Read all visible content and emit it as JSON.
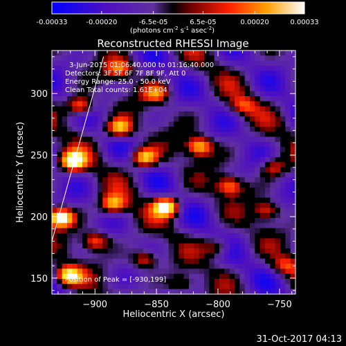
{
  "colorbar": {
    "ticks": [
      "-0.00033",
      "-0.00020",
      "-6.5e-05",
      "6.5e-05",
      "0.00020",
      "0.00033"
    ],
    "tick_values": [
      -0.00033,
      -0.0002,
      -6.5e-05,
      6.5e-05,
      0.0002,
      0.00033
    ],
    "range": [
      -0.00033,
      0.00033
    ],
    "units_main": "(photons cm",
    "units_sup1": "-2",
    "units_mid": " s",
    "units_sup2": "-1",
    "units_end": " asec",
    "units_sup3": "-2",
    "units_close": ")"
  },
  "info": {
    "time_range": "3-Jun-2015 01:06:40.000 to 01:16:40.000",
    "detectors": "Detectors: 3F 5F 6F 7F 8F 9F, Att 0",
    "energy": "Energy Range: 25.0 - 50.0 keV",
    "clean": "Clean    Total counts: 1.61E+04",
    "peak": "Position of Peak = [-930,199]"
  },
  "footer": {
    "date": "31-Oct-2017 04:13"
  },
  "chart_data": {
    "type": "heatmap",
    "title": "Reconstructed RHESSI Image",
    "xlabel": "Heliocentric X (arcsec)",
    "ylabel": "Heliocentric Y (arcsec)",
    "xlim": [
      -935,
      -737
    ],
    "ylim": [
      137,
      335
    ],
    "x_ticks": [
      -900,
      -850,
      -800,
      -750
    ],
    "y_ticks": [
      150,
      200,
      250,
      300
    ],
    "x_tick_labels": [
      "−900",
      "−850",
      "−800",
      "−750"
    ],
    "y_tick_labels": [
      "150",
      "200",
      "250",
      "300"
    ],
    "colormap": [
      "#0000ff",
      "#400090",
      "#7040c0",
      "#000000",
      "#800000",
      "#ff2000",
      "#ff9000",
      "#ffe000",
      "#ffffff"
    ],
    "peak": {
      "x": -930,
      "y": 199
    },
    "limb_line": [
      {
        "x": -935,
        "y": 180
      },
      {
        "x": -893,
        "y": 330
      }
    ],
    "bright_spots": [
      {
        "x": -928,
        "y": 199,
        "w": 1.0
      },
      {
        "x": -918,
        "y": 245,
        "w": 0.9
      },
      {
        "x": -922,
        "y": 152,
        "w": 0.85
      },
      {
        "x": -912,
        "y": 290,
        "w": 0.7
      },
      {
        "x": -880,
        "y": 272,
        "w": 0.75
      },
      {
        "x": -860,
        "y": 248,
        "w": 0.8
      },
      {
        "x": -842,
        "y": 208,
        "w": 0.95
      },
      {
        "x": -885,
        "y": 210,
        "w": 0.7
      },
      {
        "x": -815,
        "y": 257,
        "w": 0.75
      },
      {
        "x": -790,
        "y": 225,
        "w": 0.6
      },
      {
        "x": -760,
        "y": 205,
        "w": 0.5
      },
      {
        "x": -850,
        "y": 300,
        "w": 0.5
      },
      {
        "x": -780,
        "y": 290,
        "w": 0.4
      },
      {
        "x": -860,
        "y": 165,
        "w": 0.55
      },
      {
        "x": -800,
        "y": 175,
        "w": 0.45
      },
      {
        "x": -900,
        "y": 180,
        "w": 0.6
      },
      {
        "x": -755,
        "y": 240,
        "w": 0.45
      },
      {
        "x": -830,
        "y": 145,
        "w": 0.4
      },
      {
        "x": -880,
        "y": 320,
        "w": 0.5
      },
      {
        "x": -745,
        "y": 160,
        "w": 0.4
      }
    ]
  }
}
